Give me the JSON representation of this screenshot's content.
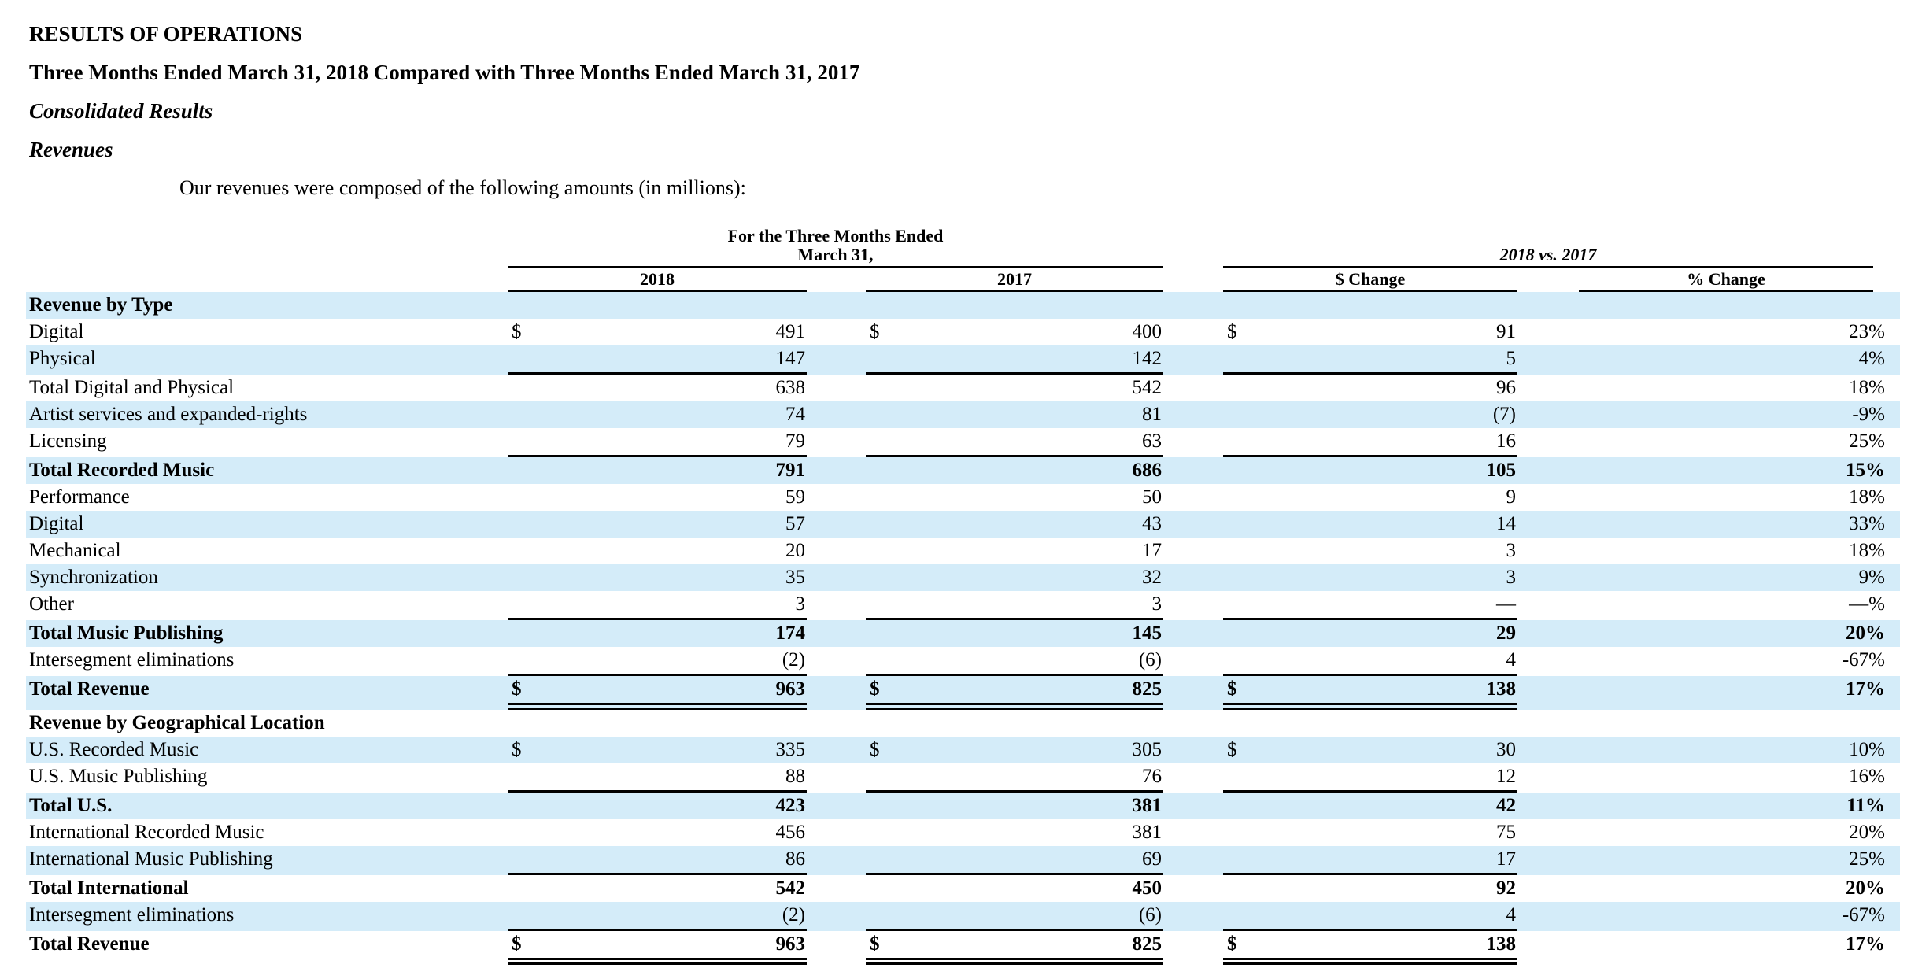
{
  "colors": {
    "stripe": "#d4ecf9",
    "rule": "#000000",
    "text": "#000000",
    "background": "#ffffff"
  },
  "headings": {
    "h1": "RESULTS OF OPERATIONS",
    "h2": "Three Months Ended March 31, 2018 Compared with Three Months Ended March 31, 2017",
    "h3": "Consolidated Results",
    "h4": "Revenues"
  },
  "intro": "Our revenues were composed of the following amounts (in millions):",
  "table": {
    "currency_symbol": "$",
    "period_header": {
      "line1": "For the Three Months Ended",
      "line2": "March 31,"
    },
    "comparison_header": "2018 vs. 2017",
    "columns": {
      "col_2018": "2018",
      "col_2017": "2017",
      "col_dollar_change": "$ Change",
      "col_percent_change": "% Change"
    },
    "rows": [
      {
        "label": "Revenue by Type",
        "section": true,
        "bold": true,
        "stripe": true,
        "v2018": "",
        "v2017": "",
        "chg": "",
        "pct": ""
      },
      {
        "label": "Digital",
        "dollar": true,
        "stripe": false,
        "v2018": "491",
        "v2017": "400",
        "chg": "91",
        "pct": "23%"
      },
      {
        "label": "Physical",
        "stripe": true,
        "rule": "single",
        "v2018": "147",
        "v2017": "142",
        "chg": "5",
        "pct": "4%"
      },
      {
        "label": "Total Digital and Physical",
        "stripe": false,
        "v2018": "638",
        "v2017": "542",
        "chg": "96",
        "pct": "18%"
      },
      {
        "label": "Artist services and expanded-rights",
        "stripe": true,
        "v2018": "74",
        "v2017": "81",
        "chg": "(7)",
        "pct": "-9%"
      },
      {
        "label": "Licensing",
        "stripe": false,
        "rule": "single",
        "v2018": "79",
        "v2017": "63",
        "chg": "16",
        "pct": "25%"
      },
      {
        "label": "Total Recorded Music",
        "bold": true,
        "stripe": true,
        "v2018": "791",
        "v2017": "686",
        "chg": "105",
        "pct": "15%"
      },
      {
        "label": "Performance",
        "stripe": false,
        "v2018": "59",
        "v2017": "50",
        "chg": "9",
        "pct": "18%"
      },
      {
        "label": "Digital",
        "stripe": true,
        "v2018": "57",
        "v2017": "43",
        "chg": "14",
        "pct": "33%"
      },
      {
        "label": "Mechanical",
        "stripe": false,
        "v2018": "20",
        "v2017": "17",
        "chg": "3",
        "pct": "18%"
      },
      {
        "label": "Synchronization",
        "stripe": true,
        "v2018": "35",
        "v2017": "32",
        "chg": "3",
        "pct": "9%"
      },
      {
        "label": "Other",
        "stripe": false,
        "rule": "single",
        "v2018": "3",
        "v2017": "3",
        "chg": "—",
        "pct": "—%"
      },
      {
        "label": "Total Music Publishing",
        "bold": true,
        "stripe": true,
        "v2018": "174",
        "v2017": "145",
        "chg": "29",
        "pct": "20%"
      },
      {
        "label": "Intersegment eliminations",
        "stripe": false,
        "rule": "single",
        "v2018": "(2)",
        "v2017": "(6)",
        "chg": "4",
        "pct": "-67%"
      },
      {
        "label": "Total Revenue",
        "bold": true,
        "dollar": true,
        "stripe": true,
        "rule": "double",
        "v2018": "963",
        "v2017": "825",
        "chg": "138",
        "pct": "17%"
      },
      {
        "label": "Revenue by Geographical Location",
        "section": true,
        "bold": true,
        "stripe": false,
        "v2018": "",
        "v2017": "",
        "chg": "",
        "pct": ""
      },
      {
        "label": "U.S. Recorded Music",
        "dollar": true,
        "stripe": true,
        "v2018": "335",
        "v2017": "305",
        "chg": "30",
        "pct": "10%"
      },
      {
        "label": "U.S. Music Publishing",
        "stripe": false,
        "rule": "single",
        "v2018": "88",
        "v2017": "76",
        "chg": "12",
        "pct": "16%"
      },
      {
        "label": "Total U.S.",
        "bold": true,
        "stripe": true,
        "v2018": "423",
        "v2017": "381",
        "chg": "42",
        "pct": "11%"
      },
      {
        "label": "International Recorded Music",
        "stripe": false,
        "v2018": "456",
        "v2017": "381",
        "chg": "75",
        "pct": "20%"
      },
      {
        "label": "International Music Publishing",
        "stripe": true,
        "rule": "single",
        "v2018": "86",
        "v2017": "69",
        "chg": "17",
        "pct": "25%"
      },
      {
        "label": "Total International",
        "bold": true,
        "stripe": false,
        "v2018": "542",
        "v2017": "450",
        "chg": "92",
        "pct": "20%"
      },
      {
        "label": "Intersegment eliminations",
        "stripe": true,
        "rule": "single",
        "v2018": "(2)",
        "v2017": "(6)",
        "chg": "4",
        "pct": "-67%"
      },
      {
        "label": "Total Revenue",
        "bold": true,
        "dollar": true,
        "stripe": false,
        "rule": "double",
        "v2018": "963",
        "v2017": "825",
        "chg": "138",
        "pct": "17%"
      }
    ]
  }
}
